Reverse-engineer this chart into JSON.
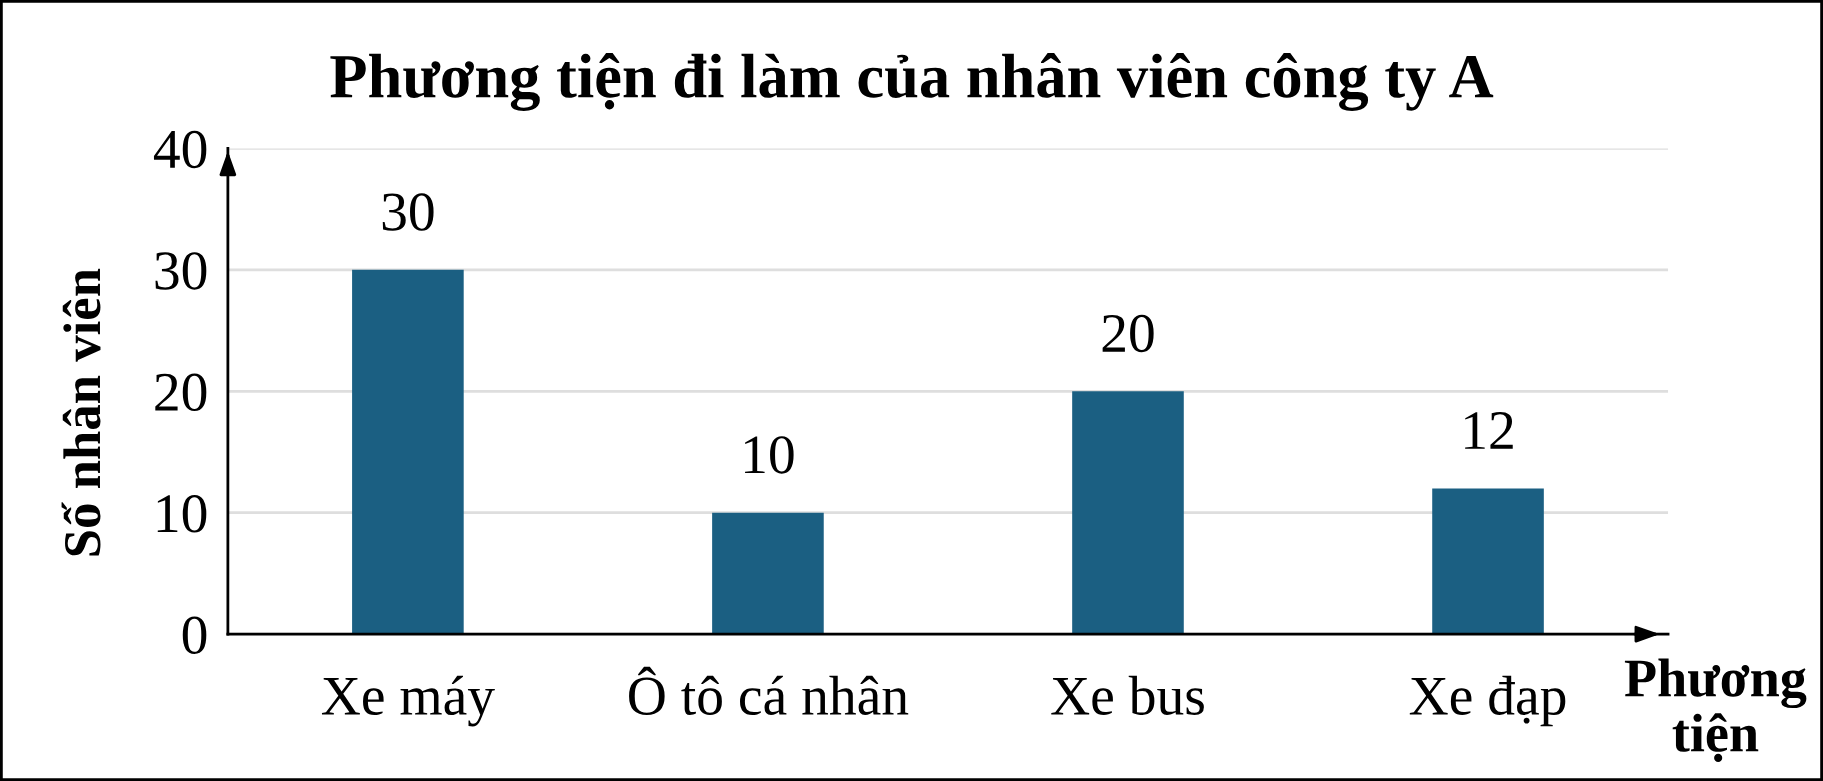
{
  "chart_data": {
    "type": "bar",
    "title": "Phương tiện đi làm của nhân viên công ty A",
    "xlabel": "Phương tiện",
    "ylabel": "Số nhân viên",
    "categories": [
      "Xe máy",
      "Ô tô cá nhân",
      "Xe bus",
      "Xe đạp"
    ],
    "values": [
      30,
      10,
      20,
      12
    ],
    "color": "#1b5f82",
    "ylim": [
      0,
      40
    ],
    "yticks": [
      0,
      10,
      20,
      30,
      40
    ],
    "grid": "y",
    "data_labels": true
  }
}
